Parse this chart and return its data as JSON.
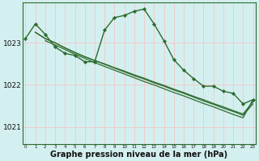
{
  "background_color": "#d4efef",
  "grid_color": "#f0c8c8",
  "line_color": "#2d6b2d",
  "xlabel": "Graphe pression niveau de la mer (hPa)",
  "xlabel_fontsize": 7,
  "ylim": [
    1020.6,
    1023.95
  ],
  "yticks": [
    1021,
    1022,
    1023
  ],
  "xticks": [
    0,
    1,
    2,
    3,
    4,
    5,
    6,
    7,
    8,
    9,
    10,
    11,
    12,
    13,
    14,
    15,
    16,
    17,
    18,
    19,
    20,
    21,
    22,
    23
  ],
  "series": [
    {
      "x": [
        0,
        1,
        2,
        3,
        4,
        5,
        6,
        7,
        8,
        9,
        10,
        11,
        12,
        13,
        14,
        15,
        16,
        17,
        18,
        19,
        20,
        21,
        22,
        23
      ],
      "y": [
        1023.1,
        1023.45,
        1023.2,
        1022.9,
        1022.75,
        1022.7,
        1022.55,
        1022.55,
        1023.3,
        1023.6,
        1023.65,
        1023.75,
        1023.8,
        1023.45,
        1023.05,
        1022.6,
        1022.35,
        1022.15,
        1021.97,
        1021.97,
        1021.85,
        1021.8,
        1021.55,
        1021.65
      ],
      "markers": true,
      "linewidth": 1.0
    },
    {
      "x": [
        1,
        2,
        3,
        4,
        5,
        6,
        7,
        8,
        9,
        10,
        11,
        12,
        13,
        14,
        15,
        16,
        17,
        18,
        19,
        20,
        21,
        22,
        23
      ],
      "y": [
        1023.25,
        1023.1,
        1023.0,
        1022.88,
        1022.77,
        1022.67,
        1022.58,
        1022.49,
        1022.4,
        1022.31,
        1022.22,
        1022.14,
        1022.05,
        1021.97,
        1021.88,
        1021.8,
        1021.71,
        1021.62,
        1021.54,
        1021.45,
        1021.37,
        1021.28,
        1021.55
      ],
      "markers": false,
      "linewidth": 0.9
    },
    {
      "x": [
        1,
        2,
        3,
        4,
        5,
        6,
        7,
        8,
        9,
        10,
        11,
        12,
        13,
        14,
        15,
        16,
        17,
        18,
        19,
        20,
        21,
        22,
        23
      ],
      "y": [
        1023.25,
        1023.1,
        1023.0,
        1022.88,
        1022.77,
        1022.67,
        1022.58,
        1022.5,
        1022.41,
        1022.33,
        1022.24,
        1022.16,
        1022.07,
        1021.99,
        1021.9,
        1021.82,
        1021.73,
        1021.65,
        1021.56,
        1021.48,
        1021.39,
        1021.31,
        1021.6
      ],
      "markers": false,
      "linewidth": 0.9
    },
    {
      "x": [
        2,
        3,
        4,
        5,
        6,
        7,
        8,
        9,
        10,
        11,
        12,
        13,
        14,
        15,
        16,
        17,
        18,
        19,
        20,
        21,
        22,
        23
      ],
      "y": [
        1023.05,
        1022.95,
        1022.84,
        1022.73,
        1022.63,
        1022.53,
        1022.44,
        1022.35,
        1022.26,
        1022.17,
        1022.08,
        1022.0,
        1021.91,
        1021.82,
        1021.74,
        1021.65,
        1021.56,
        1021.48,
        1021.39,
        1021.3,
        1021.22,
        1021.65
      ],
      "markers": false,
      "linewidth": 0.9
    }
  ]
}
